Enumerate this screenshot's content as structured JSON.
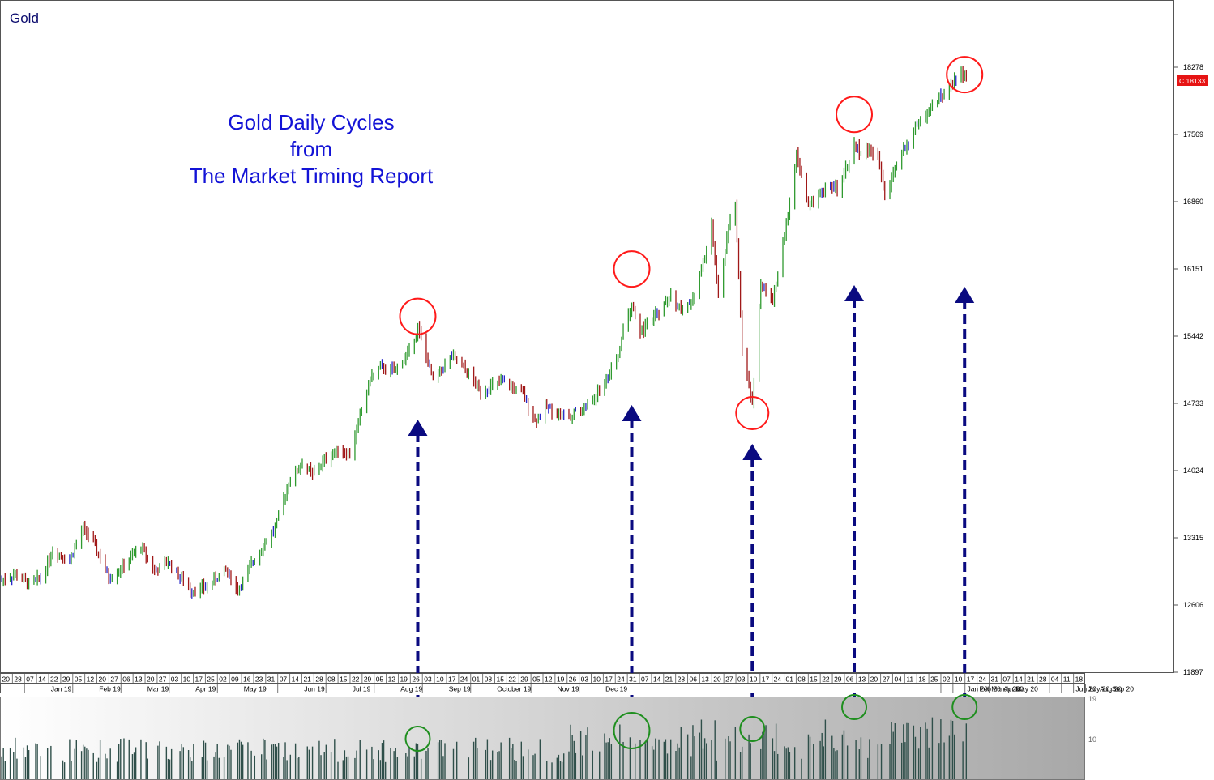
{
  "chart_data": {
    "type": "bar",
    "symbol": "Gold",
    "title_lines": [
      "Gold Daily Cycles",
      "from",
      "The Market Timing Report"
    ],
    "y_ticks": [
      "18278",
      "17569",
      "16860",
      "16151",
      "15442",
      "14733",
      "14024",
      "13315",
      "12606",
      "11897"
    ],
    "ylim": [
      11897,
      18987
    ],
    "last_price_label": "C 18133",
    "day_ticks": [
      "20",
      "28",
      "07",
      "14",
      "22",
      "29",
      "05",
      "12",
      "20",
      "27",
      "06",
      "13",
      "20",
      "27",
      "03",
      "10",
      "17",
      "25",
      "02",
      "09",
      "16",
      "23",
      "31",
      "07",
      "14",
      "21",
      "28",
      "08",
      "15",
      "22",
      "29",
      "05",
      "12",
      "19",
      "26",
      "03",
      "10",
      "17",
      "24",
      "01",
      "08",
      "15",
      "22",
      "29",
      "05",
      "12",
      "19",
      "26",
      "03",
      "10",
      "17",
      "24",
      "31",
      "07",
      "14",
      "21",
      "28",
      "06",
      "13",
      "20",
      "27",
      "03",
      "10",
      "17",
      "24",
      "01",
      "08",
      "15",
      "22",
      "29",
      "06",
      "13",
      "20",
      "27",
      "04",
      "11",
      "18",
      "25",
      "02",
      "10",
      "17",
      "24",
      "31",
      "07",
      "14",
      "21",
      "28",
      "04",
      "11",
      "18"
    ],
    "month_ticks": [
      {
        "label": "Jan 19",
        "day": "07"
      },
      {
        "label": "Feb 19",
        "day": "05"
      },
      {
        "label": "Mar 19",
        "day": "06"
      },
      {
        "label": "Apr 19",
        "day": "03"
      },
      {
        "label": "May 19",
        "day": "02"
      },
      {
        "label": "Jun 19",
        "day": "07"
      },
      {
        "label": "Jul 19",
        "day": "08"
      },
      {
        "label": "Aug 19",
        "day": "05"
      },
      {
        "label": "Sep 19",
        "day": "03"
      },
      {
        "label": "October 19",
        "day": "01"
      },
      {
        "label": "Nov 19",
        "day": "05"
      },
      {
        "label": "Dec 19",
        "day": "03"
      },
      {
        "label": "Jan 20",
        "day": "02"
      },
      {
        "label": "Feb 20",
        "day": "03"
      },
      {
        "label": "March 20",
        "day": "03"
      },
      {
        "label": "Apr 20",
        "day": "01"
      },
      {
        "label": "May 20",
        "day": "06"
      },
      {
        "label": "Jun 20",
        "day": "04"
      },
      {
        "label": "July 20",
        "day": "02"
      },
      {
        "label": "Aug 20",
        "day": "07"
      },
      {
        "label": "Sep 20",
        "day": "04"
      }
    ],
    "volume_ticks": [
      "19",
      "10"
    ],
    "price_anchors": [
      {
        "date": "2019-01-02",
        "price": 12870
      },
      {
        "date": "2019-01-10",
        "price": 12930
      },
      {
        "date": "2019-01-18",
        "price": 12830
      },
      {
        "date": "2019-01-25",
        "price": 12890
      },
      {
        "date": "2019-02-01",
        "price": 13180
      },
      {
        "date": "2019-02-11",
        "price": 13080
      },
      {
        "date": "2019-02-19",
        "price": 13420
      },
      {
        "date": "2019-02-25",
        "price": 13260
      },
      {
        "date": "2019-03-06",
        "price": 12890
      },
      {
        "date": "2019-03-15",
        "price": 13020
      },
      {
        "date": "2019-03-25",
        "price": 13230
      },
      {
        "date": "2019-04-02",
        "price": 12960
      },
      {
        "date": "2019-04-10",
        "price": 13060
      },
      {
        "date": "2019-04-23",
        "price": 12760
      },
      {
        "date": "2019-05-02",
        "price": 12790
      },
      {
        "date": "2019-05-14",
        "price": 12980
      },
      {
        "date": "2019-05-21",
        "price": 12760
      },
      {
        "date": "2019-05-31",
        "price": 13100
      },
      {
        "date": "2019-06-12",
        "price": 13420
      },
      {
        "date": "2019-06-20",
        "price": 13900
      },
      {
        "date": "2019-06-28",
        "price": 14100
      },
      {
        "date": "2019-07-04",
        "price": 13980
      },
      {
        "date": "2019-07-12",
        "price": 14150
      },
      {
        "date": "2019-07-19",
        "price": 14250
      },
      {
        "date": "2019-07-26",
        "price": 14190
      },
      {
        "date": "2019-08-07",
        "price": 15000
      },
      {
        "date": "2019-08-13",
        "price": 15110
      },
      {
        "date": "2019-08-21",
        "price": 15070
      },
      {
        "date": "2019-08-30",
        "price": 15290
      },
      {
        "date": "2019-09-04",
        "price": 15530
      },
      {
        "date": "2019-09-13",
        "price": 14980
      },
      {
        "date": "2019-09-24",
        "price": 15230
      },
      {
        "date": "2019-10-03",
        "price": 15060
      },
      {
        "date": "2019-10-11",
        "price": 14860
      },
      {
        "date": "2019-10-24",
        "price": 14960
      },
      {
        "date": "2019-11-05",
        "price": 14830
      },
      {
        "date": "2019-11-12",
        "price": 14550
      },
      {
        "date": "2019-11-19",
        "price": 14700
      },
      {
        "date": "2019-11-28",
        "price": 14600
      },
      {
        "date": "2019-12-09",
        "price": 14650
      },
      {
        "date": "2019-12-17",
        "price": 14790
      },
      {
        "date": "2019-12-24",
        "price": 14990
      },
      {
        "date": "2019-12-31",
        "price": 15230
      },
      {
        "date": "2020-01-03",
        "price": 15510
      },
      {
        "date": "2020-01-08",
        "price": 15760
      },
      {
        "date": "2020-01-13",
        "price": 15490
      },
      {
        "date": "2020-01-24",
        "price": 15700
      },
      {
        "date": "2020-01-31",
        "price": 15850
      },
      {
        "date": "2020-02-07",
        "price": 15700
      },
      {
        "date": "2020-02-14",
        "price": 15840
      },
      {
        "date": "2020-02-24",
        "price": 16600
      },
      {
        "date": "2020-02-28",
        "price": 15860
      },
      {
        "date": "2020-03-06",
        "price": 16700
      },
      {
        "date": "2020-03-09",
        "price": 16800
      },
      {
        "date": "2020-03-13",
        "price": 15300
      },
      {
        "date": "2020-03-19",
        "price": 14720
      },
      {
        "date": "2020-03-24",
        "price": 16000
      },
      {
        "date": "2020-03-31",
        "price": 15800
      },
      {
        "date": "2020-04-07",
        "price": 16500
      },
      {
        "date": "2020-04-14",
        "price": 17350
      },
      {
        "date": "2020-04-21",
        "price": 16800
      },
      {
        "date": "2020-04-30",
        "price": 17000
      },
      {
        "date": "2020-05-08",
        "price": 17000
      },
      {
        "date": "2020-05-18",
        "price": 17450
      },
      {
        "date": "2020-05-21",
        "price": 17400
      },
      {
        "date": "2020-06-01",
        "price": 17380
      },
      {
        "date": "2020-06-05",
        "price": 16910
      },
      {
        "date": "2020-06-12",
        "price": 17250
      },
      {
        "date": "2020-06-23",
        "price": 17650
      },
      {
        "date": "2020-07-07",
        "price": 17950
      },
      {
        "date": "2020-07-15",
        "price": 18100
      },
      {
        "date": "2020-07-20",
        "price": 18230
      },
      {
        "date": "2020-07-24",
        "price": 18133
      }
    ],
    "cycle_tops": [
      {
        "date": "2019-09-04",
        "price": 15650
      },
      {
        "date": "2020-01-08",
        "price": 16150
      },
      {
        "date": "2020-05-18",
        "price": 17780
      },
      {
        "date": "2020-07-22",
        "price": 18200
      }
    ],
    "cycle_lows": [
      {
        "date": "2020-03-19",
        "price": 14630
      }
    ],
    "volume_cycle_markers": [
      "2019-09-04",
      "2020-01-08",
      "2020-03-19",
      "2020-05-18",
      "2020-07-22"
    ],
    "colors": {
      "up_bar": "#2f9a2f",
      "down_bar": "#a01818",
      "neutral_bar": "#2626c9",
      "title": "#1313d6",
      "arrow": "#0a0a80",
      "top_circle": "#ff1a1a",
      "volume_circle": "#1f8f1f",
      "volume_bar": "#2f4f4a",
      "last_price_bg": "#e61414"
    }
  }
}
